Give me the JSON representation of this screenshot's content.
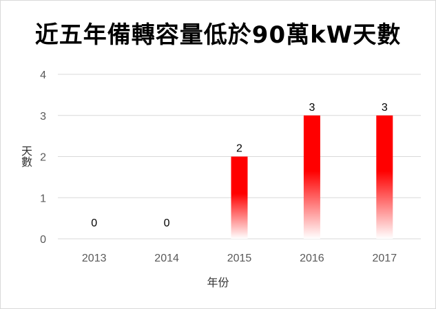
{
  "chart_data": {
    "type": "bar",
    "title": "近五年備轉容量低於90萬kW天數",
    "xlabel": "年份",
    "ylabel": "天數",
    "categories": [
      "2013",
      "2014",
      "2015",
      "2016",
      "2017"
    ],
    "values": [
      0,
      0,
      2,
      3,
      3
    ],
    "ylim": [
      0,
      4
    ],
    "yticks": [
      "0",
      "1",
      "2",
      "3",
      "4"
    ],
    "data_labels": [
      "0",
      "0",
      "2",
      "3",
      "3"
    ],
    "grid": true,
    "legend": "none",
    "bar_color": "#ff0000",
    "bar_fill": "gradient red to white (top to bottom)"
  }
}
